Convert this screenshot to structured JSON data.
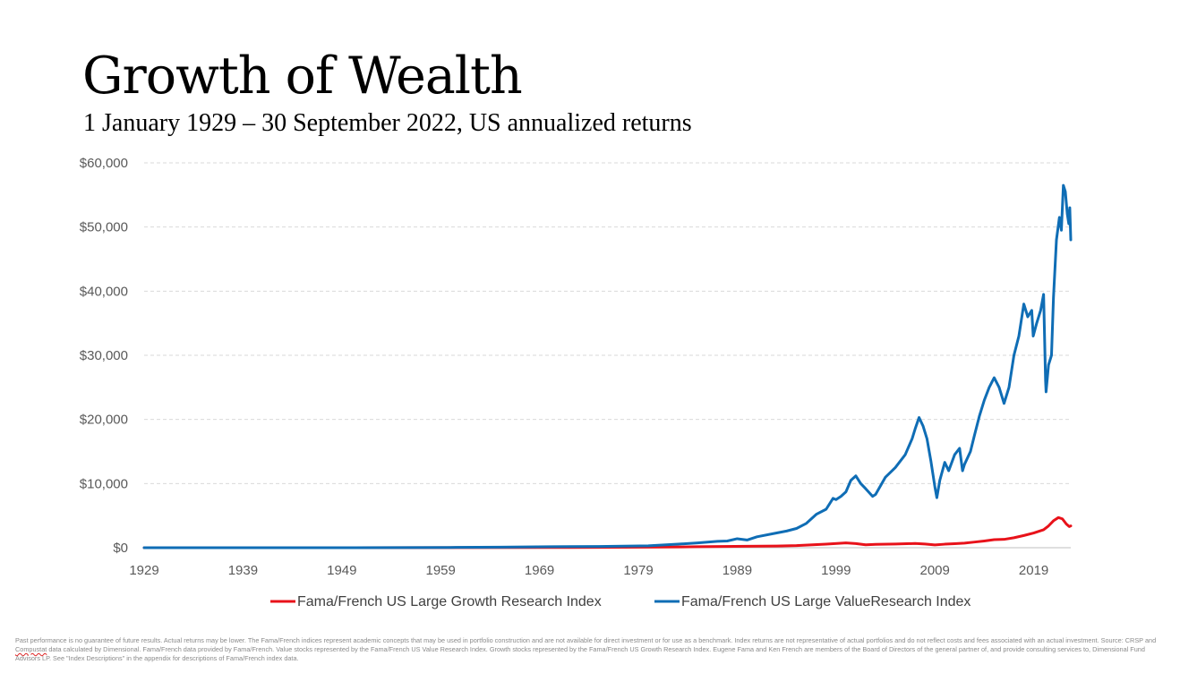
{
  "title": "Growth of Wealth",
  "subtitle": "1 January 1929 – 30 September 2022, US annualized returns",
  "footnote": {
    "part1": "Past performance is no guarantee of future results. Actual returns may be lower. The Fama/French indices represent academic concepts that may be used in portfolio construction and are not available for direct investment or for use as a benchmark. Index returns are not representative of actual portfolios and do not reflect costs and fees associated with an actual investment. Source: CRSP and ",
    "flagged_word": "Compustat",
    "part2": " data calculated by Dimensional. Fama/French data provided by Fama/French. Value stocks represented by the Fama/French US Value Research Index. Growth stocks represented by the Fama/French US Growth Research Index. Eugene Fama and Ken French are members of the Board of Directors of the general partner of, and provide consulting services to, Dimensional Fund Advisors LP. See \"Index Descriptions\" in the appendix for descriptions of Fama/French index data."
  },
  "colors": {
    "growth": "#e8121a",
    "value": "#0f6db5",
    "grid": "#d9d9d9",
    "axis": "#bfbfbf",
    "tick_text": "#595959"
  },
  "chart_data": {
    "type": "line",
    "y_tick_labels": [
      "$0",
      "$10,000",
      "$20,000",
      "$30,000",
      "$40,000",
      "$50,000",
      "$60,000"
    ],
    "y_ticks": [
      0,
      10000,
      20000,
      30000,
      40000,
      50000,
      60000
    ],
    "ylim": [
      0,
      60000
    ],
    "x_ticks": [
      1929,
      1939,
      1949,
      1959,
      1969,
      1979,
      1989,
      1999,
      2009,
      2019
    ],
    "xlim": [
      1929,
      2022.75
    ],
    "grid": true,
    "legend_position": "bottom",
    "series": [
      {
        "name": "Fama/French US Large Growth Research Index",
        "color": "#e8121a",
        "points": [
          [
            1929,
            1
          ],
          [
            1940,
            2
          ],
          [
            1950,
            5
          ],
          [
            1960,
            15
          ],
          [
            1970,
            40
          ],
          [
            1975,
            45
          ],
          [
            1980,
            80
          ],
          [
            1985,
            150
          ],
          [
            1990,
            230
          ],
          [
            1993,
            260
          ],
          [
            1995,
            330
          ],
          [
            1998,
            560
          ],
          [
            2000,
            750
          ],
          [
            2001,
            650
          ],
          [
            2002,
            450
          ],
          [
            2003,
            520
          ],
          [
            2005,
            570
          ],
          [
            2007,
            660
          ],
          [
            2008,
            580
          ],
          [
            2009,
            430
          ],
          [
            2010,
            550
          ],
          [
            2011,
            620
          ],
          [
            2012,
            720
          ],
          [
            2013,
            880
          ],
          [
            2014,
            1050
          ],
          [
            2015,
            1250
          ],
          [
            2016,
            1300
          ],
          [
            2017,
            1550
          ],
          [
            2018,
            1900
          ],
          [
            2019,
            2300
          ],
          [
            2020,
            2800
          ],
          [
            2020.5,
            3400
          ],
          [
            2021,
            4200
          ],
          [
            2021.5,
            4700
          ],
          [
            2021.9,
            4500
          ],
          [
            2022.3,
            3700
          ],
          [
            2022.6,
            3300
          ],
          [
            2022.75,
            3400
          ]
        ]
      },
      {
        "name": "Fama/French US Large ValueResearch Index",
        "color": "#0f6db5",
        "points": [
          [
            1929,
            1
          ],
          [
            1940,
            2
          ],
          [
            1950,
            8
          ],
          [
            1960,
            40
          ],
          [
            1965,
            90
          ],
          [
            1970,
            150
          ],
          [
            1975,
            200
          ],
          [
            1980,
            300
          ],
          [
            1983,
            550
          ],
          [
            1985,
            750
          ],
          [
            1987,
            1000
          ],
          [
            1988,
            1050
          ],
          [
            1989,
            1400
          ],
          [
            1990,
            1200
          ],
          [
            1991,
            1700
          ],
          [
            1993,
            2300
          ],
          [
            1994,
            2600
          ],
          [
            1995,
            3000
          ],
          [
            1996,
            3800
          ],
          [
            1997,
            5200
          ],
          [
            1998,
            6000
          ],
          [
            1998.7,
            7700
          ],
          [
            1999,
            7500
          ],
          [
            1999.5,
            8000
          ],
          [
            2000,
            8700
          ],
          [
            2000.5,
            10500
          ],
          [
            2001,
            11200
          ],
          [
            2001.5,
            10000
          ],
          [
            2002,
            9200
          ],
          [
            2002.7,
            8000
          ],
          [
            2003,
            8300
          ],
          [
            2004,
            11000
          ],
          [
            2005,
            12500
          ],
          [
            2006,
            14500
          ],
          [
            2006.7,
            17000
          ],
          [
            2007,
            18500
          ],
          [
            2007.4,
            20300
          ],
          [
            2007.8,
            19000
          ],
          [
            2008.2,
            17000
          ],
          [
            2008.6,
            13500
          ],
          [
            2009.0,
            9500
          ],
          [
            2009.2,
            7800
          ],
          [
            2009.5,
            10500
          ],
          [
            2010,
            13300
          ],
          [
            2010.4,
            12000
          ],
          [
            2011,
            14500
          ],
          [
            2011.5,
            15500
          ],
          [
            2011.8,
            12000
          ],
          [
            2012,
            13000
          ],
          [
            2012.6,
            15000
          ],
          [
            2013,
            17500
          ],
          [
            2013.5,
            20500
          ],
          [
            2014,
            23000
          ],
          [
            2014.5,
            25000
          ],
          [
            2015,
            26500
          ],
          [
            2015.5,
            25000
          ],
          [
            2016,
            22500
          ],
          [
            2016.5,
            25000
          ],
          [
            2017,
            30000
          ],
          [
            2017.5,
            33000
          ],
          [
            2018,
            38000
          ],
          [
            2018.4,
            36000
          ],
          [
            2018.8,
            37000
          ],
          [
            2018.95,
            33000
          ],
          [
            2019.3,
            35000
          ],
          [
            2019.7,
            37000
          ],
          [
            2020,
            39500
          ],
          [
            2020.2,
            26000
          ],
          [
            2020.25,
            24300
          ],
          [
            2020.5,
            28500
          ],
          [
            2020.8,
            30000
          ],
          [
            2021,
            39000
          ],
          [
            2021.3,
            48000
          ],
          [
            2021.6,
            51500
          ],
          [
            2021.8,
            49500
          ],
          [
            2022.0,
            56500
          ],
          [
            2022.2,
            55500
          ],
          [
            2022.4,
            52000
          ],
          [
            2022.55,
            50500
          ],
          [
            2022.65,
            53000
          ],
          [
            2022.75,
            48000
          ]
        ]
      }
    ]
  }
}
